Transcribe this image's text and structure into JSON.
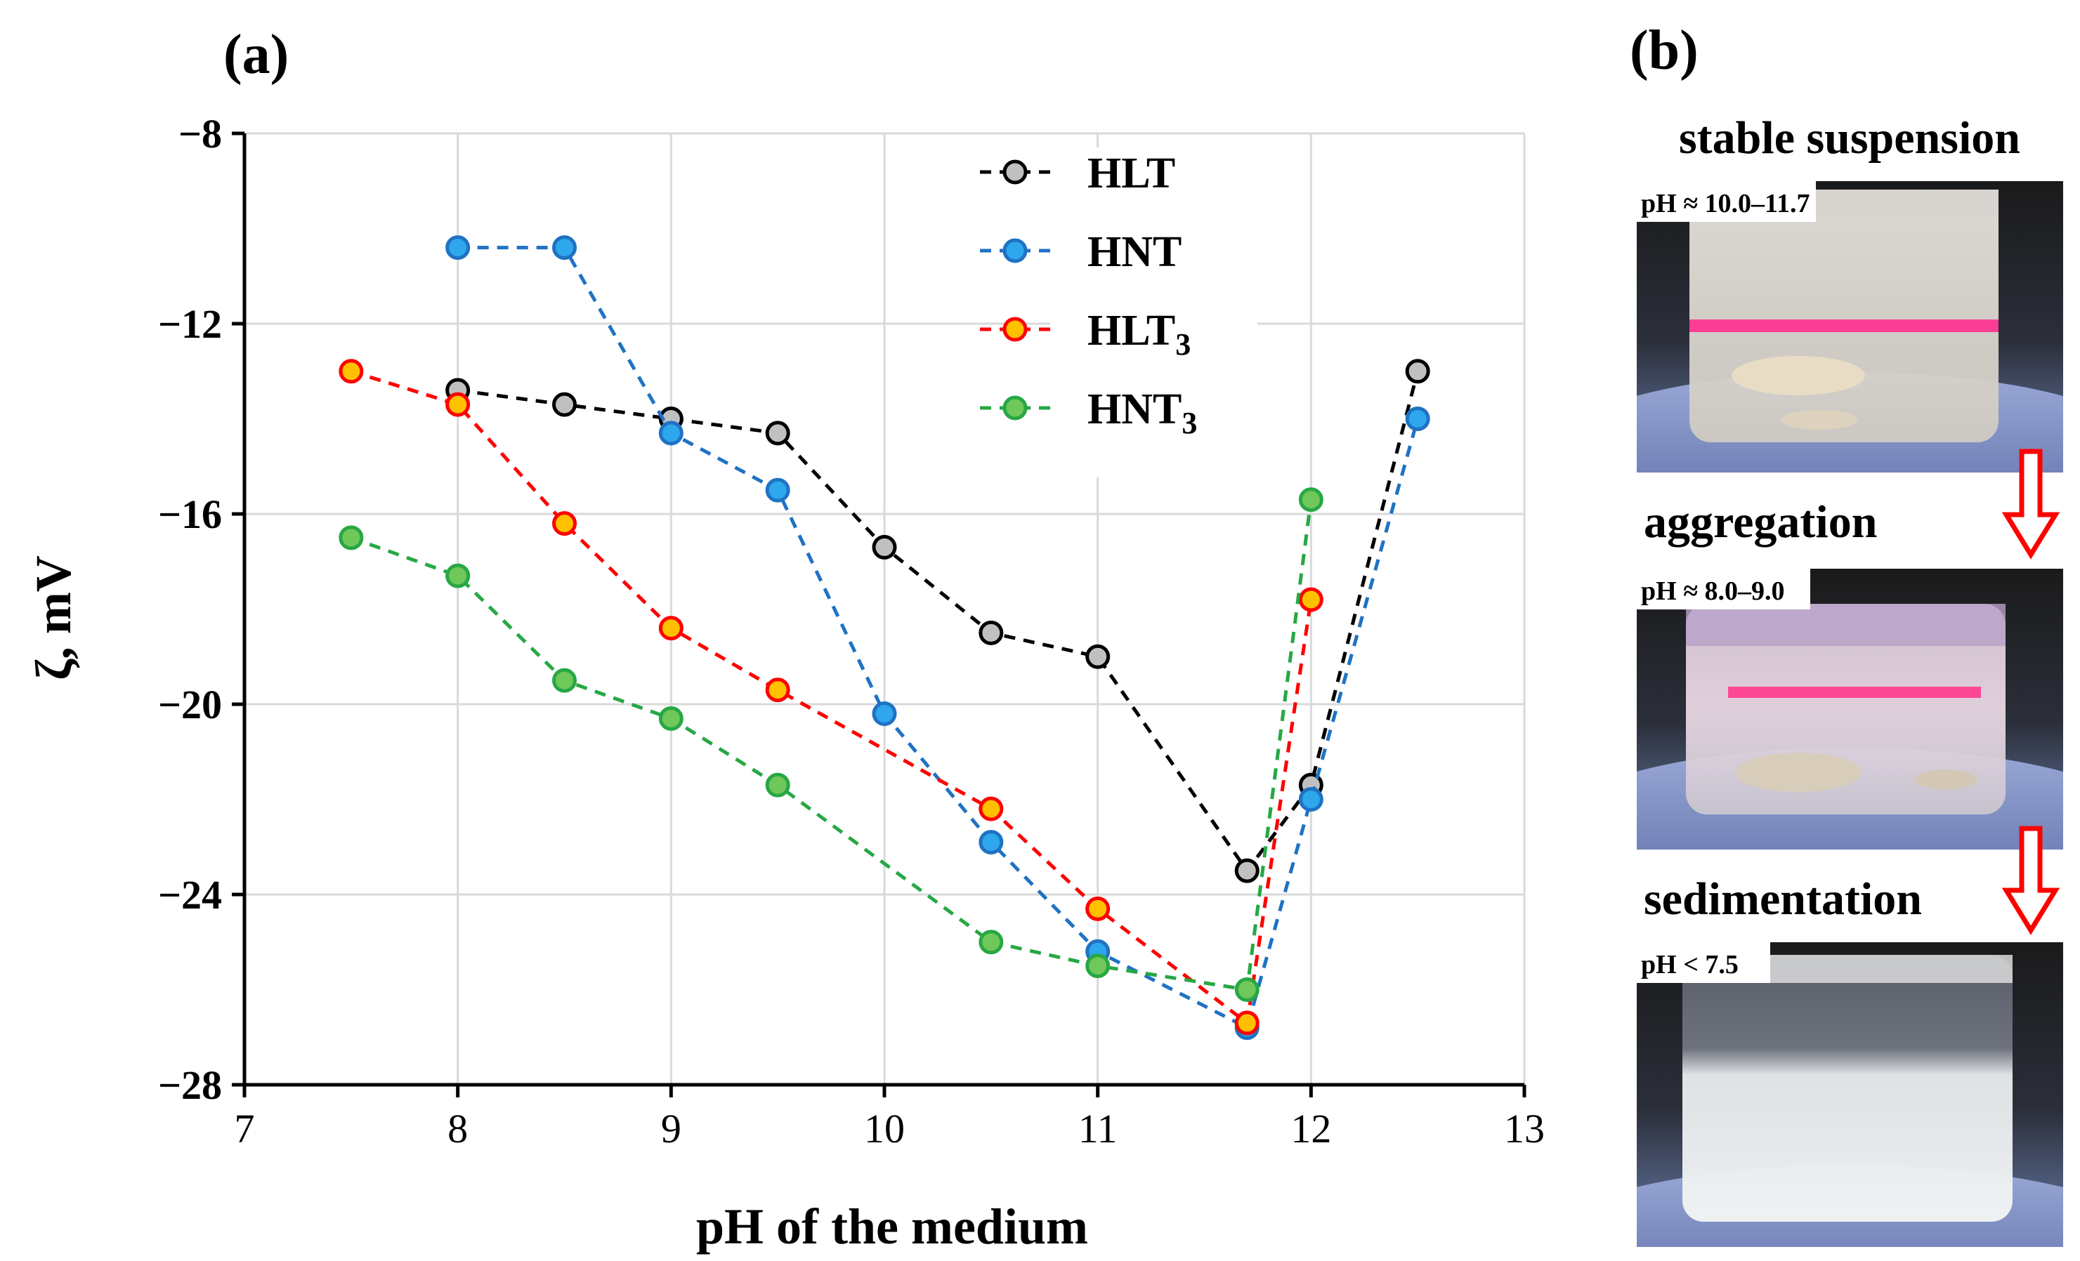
{
  "panels": {
    "a": {
      "label": "(a)"
    },
    "b": {
      "label": "(b)",
      "photos": [
        {
          "caption": "stable suspension",
          "ph_label": "pH ≈ 10.0–11.7",
          "state": "stable"
        },
        {
          "caption": "aggregation",
          "ph_label": "pH ≈ 8.0–9.0",
          "state": "aggregation"
        },
        {
          "caption": "sedimentation",
          "ph_label": "pH < 7.5",
          "state": "sedimentation"
        }
      ],
      "arrow_color": "#ff0000"
    }
  },
  "chart_data": {
    "type": "line",
    "xlabel": "pH of the medium",
    "ylabel": "ζ, mV",
    "xlim": [
      7,
      13
    ],
    "ylim": [
      -28,
      -8
    ],
    "xticks": [
      7,
      8,
      9,
      10,
      11,
      12,
      13
    ],
    "yticks": [
      -8,
      -12,
      -16,
      -20,
      -24,
      -28
    ],
    "ytick_labels": [
      "−8",
      "−12",
      "−16",
      "−20",
      "−24",
      "−28"
    ],
    "grid": true,
    "legend_position": "top-right",
    "series": [
      {
        "name": "HLT",
        "sub": "",
        "line_color": "#000000",
        "marker_fill": "#c0c0c0",
        "marker_edge": "#000000",
        "x": [
          8,
          8.5,
          9,
          9.5,
          10,
          10.5,
          11,
          11.7,
          12,
          12.5
        ],
        "y": [
          -13.4,
          -13.7,
          -14.0,
          -14.3,
          -16.7,
          -18.5,
          -19.0,
          -23.5,
          -21.7,
          -13.0
        ]
      },
      {
        "name": "HNT",
        "sub": "",
        "line_color": "#1f72c4",
        "marker_fill": "#2ea7ec",
        "marker_edge": "#1f72c4",
        "x": [
          8,
          8.5,
          9,
          9.5,
          10,
          10.5,
          11,
          11.7,
          12,
          12.5
        ],
        "y": [
          -10.4,
          -10.4,
          -14.3,
          -15.5,
          -20.2,
          -22.9,
          -25.2,
          -26.8,
          -22.0,
          -14.0
        ]
      },
      {
        "name": "HLT",
        "sub": "3",
        "line_color": "#ff0000",
        "marker_fill": "#ffc000",
        "marker_edge": "#ff0000",
        "x": [
          7.5,
          8,
          8.5,
          9,
          9.5,
          10.5,
          11,
          11.7,
          12
        ],
        "y": [
          -13.0,
          -13.7,
          -16.2,
          -18.4,
          -19.7,
          -22.2,
          -24.3,
          -26.7,
          -17.8
        ]
      },
      {
        "name": "HNT",
        "sub": "3",
        "line_color": "#27a844",
        "marker_fill": "#70c75a",
        "marker_edge": "#27a844",
        "x": [
          7.5,
          8,
          8.5,
          9,
          9.5,
          10.5,
          11,
          11.7,
          12
        ],
        "y": [
          -16.5,
          -17.3,
          -19.5,
          -20.3,
          -21.7,
          -25.0,
          -25.5,
          -26.0,
          -15.7
        ]
      }
    ]
  }
}
